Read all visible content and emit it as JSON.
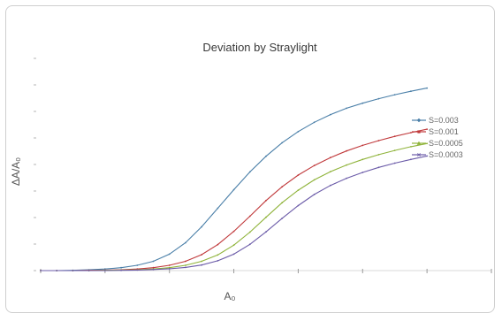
{
  "chart_data": {
    "type": "line",
    "title": "Deviation by Straylight",
    "xlabel": "A₀",
    "ylabel": "ΔA/A₀",
    "x": [
      0.0,
      0.25,
      0.5,
      0.75,
      1.0,
      1.25,
      1.5,
      1.75,
      2.0,
      2.25,
      2.5,
      2.75,
      3.0,
      3.25,
      3.5,
      3.75,
      4.0,
      4.25,
      4.5,
      4.75,
      5.0,
      5.25,
      5.5,
      5.75,
      6.0
    ],
    "xlim": [
      0,
      7
    ],
    "ylim": [
      0,
      0.08
    ],
    "legend_position": "right",
    "grid": false,
    "series": [
      {
        "name": "S=0.003",
        "color": "#4a7fa8",
        "marker": "diamond",
        "values": [
          0.0,
          0.0,
          0.0001,
          0.0003,
          0.0006,
          0.0011,
          0.002,
          0.0035,
          0.0062,
          0.0105,
          0.0165,
          0.0235,
          0.0305,
          0.0372,
          0.0431,
          0.0482,
          0.0524,
          0.0559,
          0.0588,
          0.0612,
          0.0631,
          0.0648,
          0.0663,
          0.0676,
          0.0688
        ]
      },
      {
        "name": "S=0.001",
        "color": "#c0393b",
        "marker": "square",
        "values": [
          0.0,
          0.0,
          0.0,
          0.0001,
          0.0002,
          0.0003,
          0.0006,
          0.0011,
          0.002,
          0.0035,
          0.006,
          0.0098,
          0.0148,
          0.0205,
          0.0264,
          0.0316,
          0.036,
          0.0396,
          0.0426,
          0.0451,
          0.0472,
          0.049,
          0.0506,
          0.052,
          0.0533
        ]
      },
      {
        "name": "S=0.0005",
        "color": "#8fb33a",
        "marker": "triangle",
        "values": [
          0.0,
          0.0,
          0.0,
          0.0,
          0.0001,
          0.0002,
          0.0003,
          0.0006,
          0.0011,
          0.002,
          0.0035,
          0.0059,
          0.0096,
          0.0145,
          0.0201,
          0.0256,
          0.0303,
          0.0342,
          0.0373,
          0.0398,
          0.0419,
          0.0437,
          0.0453,
          0.0467,
          0.0479
        ]
      },
      {
        "name": "S=0.0003",
        "color": "#6b5ba8",
        "marker": "x",
        "values": [
          0.0,
          0.0,
          0.0,
          0.0,
          0.0,
          0.0001,
          0.0002,
          0.0004,
          0.0007,
          0.0012,
          0.0021,
          0.0037,
          0.0062,
          0.0099,
          0.0146,
          0.0197,
          0.0245,
          0.0287,
          0.0321,
          0.0348,
          0.037,
          0.0389,
          0.0405,
          0.0419,
          0.0432
        ]
      }
    ]
  }
}
